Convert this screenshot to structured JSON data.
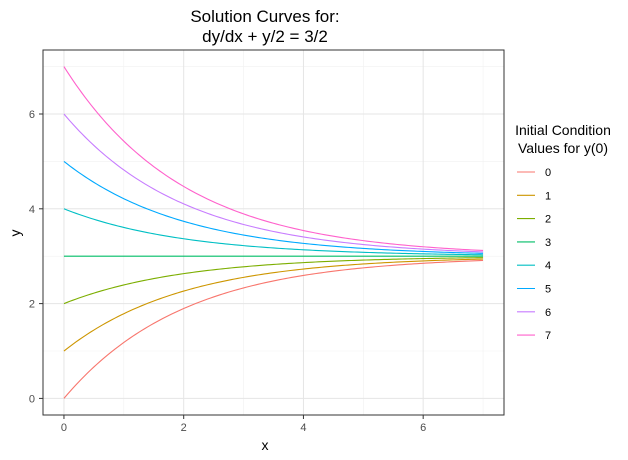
{
  "chart_data": {
    "type": "line",
    "title_lines": [
      "Solution Curves for:",
      "dy/dx + y/2 = 3/2"
    ],
    "xlabel": "x",
    "ylabel": "y",
    "xlim": [
      -0.35,
      7.35
    ],
    "ylim": [
      -0.35,
      7.35
    ],
    "x_ticks": [
      0,
      2,
      4,
      6
    ],
    "y_ticks": [
      0,
      2,
      4,
      6
    ],
    "x_range": [
      0,
      7
    ],
    "grid": true,
    "legend": {
      "title_lines": [
        "Initial Condition",
        "Values for y(0)"
      ],
      "position": "right"
    },
    "series": [
      {
        "name": "0",
        "y0": 0,
        "color": "#F8766D"
      },
      {
        "name": "1",
        "y0": 1,
        "color": "#CD9600"
      },
      {
        "name": "2",
        "y0": 2,
        "color": "#7CAE00"
      },
      {
        "name": "3",
        "y0": 3,
        "color": "#00BE67"
      },
      {
        "name": "4",
        "y0": 4,
        "color": "#00BFC4"
      },
      {
        "name": "5",
        "y0": 5,
        "color": "#00A9FF"
      },
      {
        "name": "6",
        "y0": 6,
        "color": "#C77CFF"
      },
      {
        "name": "7",
        "y0": 7,
        "color": "#FF61CC"
      }
    ]
  }
}
